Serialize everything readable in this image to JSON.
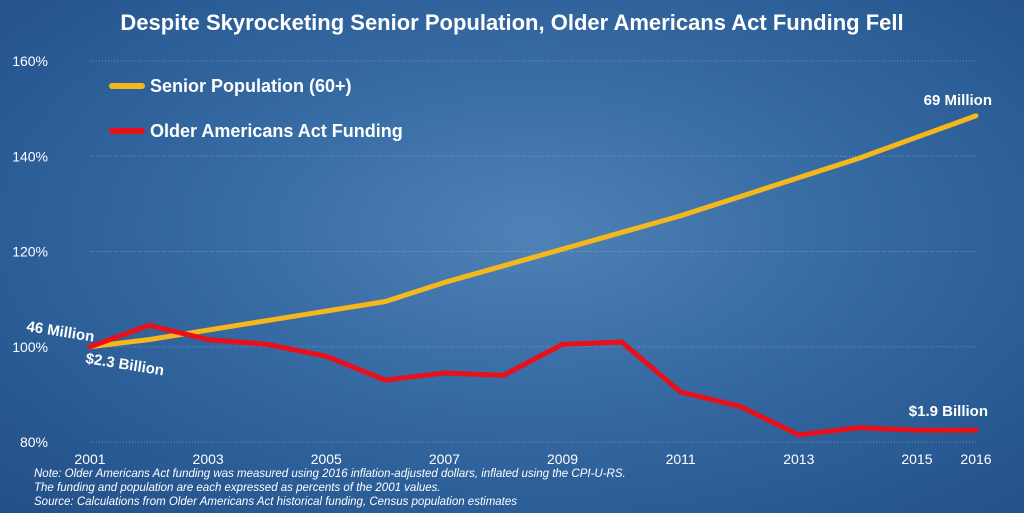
{
  "colors": {
    "senior": "#f5b81c",
    "funding": "#e8101a"
  },
  "chart_data": {
    "type": "line",
    "title": "Despite Skyrocketing Senior Population, Older Americans Act Funding Fell",
    "xlabel": "",
    "ylabel": "",
    "x": [
      2001,
      2002,
      2003,
      2004,
      2005,
      2006,
      2007,
      2008,
      2009,
      2010,
      2011,
      2012,
      2013,
      2014,
      2015,
      2016
    ],
    "x_ticks": [
      "2001",
      "2003",
      "2005",
      "2007",
      "2009",
      "2011",
      "2013",
      "2015",
      "2016"
    ],
    "y_ticks": [
      "80%",
      "100%",
      "120%",
      "140%",
      "160%"
    ],
    "ylim": [
      80,
      160
    ],
    "grid": true,
    "legend_position": "top-left",
    "series": [
      {
        "name": "Senior Population (60+)",
        "values": [
          100,
          101.5,
          103.5,
          105.5,
          107.5,
          109.5,
          113.5,
          117,
          120.5,
          124,
          127.5,
          131.5,
          135.5,
          139.5,
          144,
          148.5
        ]
      },
      {
        "name": "Older Americans Act Funding",
        "values": [
          100,
          104.5,
          101.5,
          100.5,
          98,
          93,
          94.5,
          94,
          100.5,
          101,
          90.5,
          87.5,
          81.5,
          83,
          82.5,
          82.5
        ]
      }
    ],
    "annotations": {
      "senior_start": "46 Million",
      "senior_end": "69 Million",
      "funding_start": "$2.3 Billion",
      "funding_end": "$1.9 Billion"
    }
  },
  "notes": [
    "Note: Older Americans Act funding was measured using 2016 inflation-adjusted dollars, inflated using the CPI-U-RS.",
    "The funding and population are each expressed as percents of the 2001 values.",
    "Source: Calculations from Older Americans Act historical funding, Census population estimates"
  ]
}
